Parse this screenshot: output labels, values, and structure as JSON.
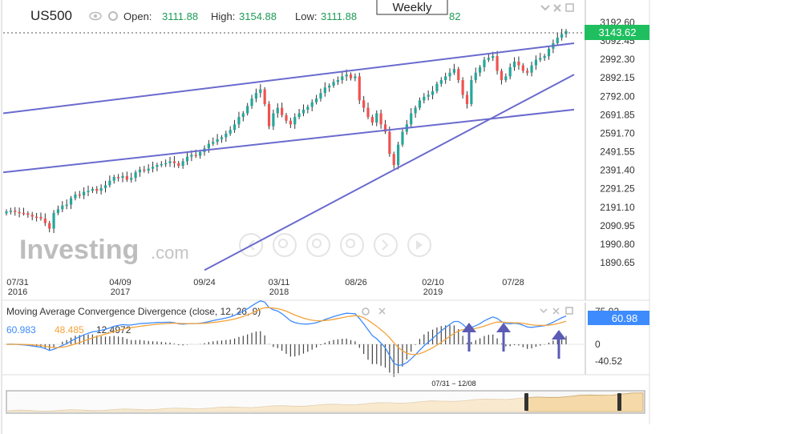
{
  "header": {
    "symbol": "US500",
    "open_label": "Open:",
    "open_value": "3111.88",
    "high_label": "High:",
    "high_value": "3154.88",
    "low_label": "Low:",
    "low_value": "3111.88",
    "close_tail": "82",
    "timeframe": "Weekly"
  },
  "watermark": {
    "brand": "Investing",
    "suffix": ".com"
  },
  "colors": {
    "up": "#26a69a",
    "down": "#ef5350",
    "trendline": "#6a6acf",
    "price_badge": "#1fbf5f",
    "macd_line": "#3d8bfd",
    "signal_line": "#f3a33a",
    "macd_badge": "#3d8bfd",
    "navigator_fill": "#f5d9a8"
  },
  "chart_data": [
    {
      "type": "candlestick",
      "series": "US500 weekly",
      "y_ticks": [
        "3192.60",
        "3092.45",
        "2992.30",
        "2892.15",
        "2792.00",
        "2691.85",
        "2591.70",
        "2491.55",
        "2391.40",
        "2291.25",
        "2191.10",
        "2090.95",
        "1990.80",
        "1890.65"
      ],
      "ylim": [
        1840,
        3240
      ],
      "current_price": "3143.62",
      "x_ticks": [
        {
          "label": "07/31",
          "year": "2016"
        },
        {
          "label": "04/09",
          "year": "2017"
        },
        {
          "label": "09/24",
          "year": ""
        },
        {
          "label": "03/11",
          "year": "2018"
        },
        {
          "label": "08/26",
          "year": ""
        },
        {
          "label": "02/10",
          "year": "2019"
        },
        {
          "label": "07/28",
          "year": ""
        }
      ],
      "closes": [
        2168,
        2172,
        2165,
        2160,
        2158,
        2150,
        2140,
        2138,
        2130,
        2105,
        2075,
        2160,
        2180,
        2200,
        2205,
        2240,
        2260,
        2255,
        2275,
        2280,
        2290,
        2280,
        2295,
        2310,
        2335,
        2355,
        2350,
        2360,
        2340,
        2350,
        2380,
        2395,
        2390,
        2400,
        2410,
        2420,
        2425,
        2430,
        2440,
        2430,
        2415,
        2440,
        2465,
        2475,
        2470,
        2490,
        2510,
        2535,
        2545,
        2560,
        2570,
        2590,
        2610,
        2640,
        2680,
        2700,
        2740,
        2780,
        2810,
        2830,
        2750,
        2630,
        2700,
        2730,
        2690,
        2660,
        2640,
        2680,
        2700,
        2720,
        2735,
        2760,
        2780,
        2810,
        2840,
        2850,
        2870,
        2880,
        2900,
        2910,
        2890,
        2900,
        2770,
        2730,
        2680,
        2650,
        2700,
        2640,
        2600,
        2480,
        2420,
        2530,
        2600,
        2640,
        2700,
        2730,
        2770,
        2790,
        2800,
        2820,
        2860,
        2880,
        2900,
        2920,
        2940,
        2880,
        2800,
        2750,
        2880,
        2920,
        2950,
        2990,
        3000,
        3010,
        2930,
        2880,
        2900,
        2950,
        2980,
        2960,
        2930,
        2920,
        2960,
        2990,
        3000,
        3010,
        3050,
        3080,
        3110,
        3130,
        3145
      ],
      "trendlines": [
        {
          "from": [
            "07/31/2016",
            2700
          ],
          "to": [
            "end",
            3080
          ]
        },
        {
          "from": [
            "07/31/2016",
            2380
          ],
          "to": [
            "end",
            2720
          ]
        },
        {
          "from": [
            "09/24/2017",
            1850
          ],
          "to": [
            "end",
            2910
          ]
        }
      ]
    },
    {
      "type": "line",
      "title": "Moving Average Convergence Divergence (close, 12, 26, 9)",
      "values_shown": {
        "macd": "60.983",
        "signal": "48.485",
        "histogram": "12.4972"
      },
      "y_ticks": [
        "75.02",
        "0",
        "-40.52"
      ],
      "ylim": [
        -60,
        80
      ],
      "current_value": "60.98",
      "arrows_at_x": [
        "2019-06",
        "2019-09",
        "2019-12"
      ]
    }
  ],
  "navigator": {
    "range_label": "07/31 − 12/08"
  },
  "toolbar_icons": [
    "zoom-out-icon",
    "zoom-in-icon",
    "reset-icon",
    "pan-left-icon",
    "pan-right-icon"
  ]
}
